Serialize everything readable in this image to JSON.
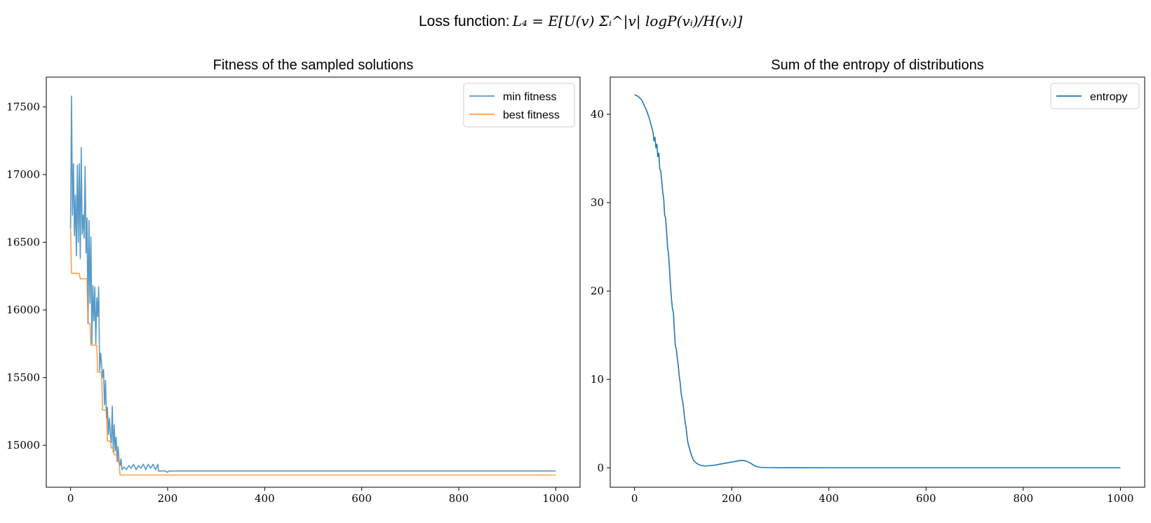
{
  "figure": {
    "suptitle_prefix": "Loss function: ",
    "suptitle_formula": "L₄ = E[U(v) Σᵢ^|v| logP(vᵢ)/H(vᵢ)]"
  },
  "chart_data": [
    {
      "type": "line",
      "title": "Fitness of the sampled solutions",
      "xlabel": "",
      "ylabel": "",
      "xlim": [
        -50,
        1050
      ],
      "ylim": [
        14690,
        17720
      ],
      "xticks": [
        0,
        200,
        400,
        600,
        800,
        1000
      ],
      "yticks": [
        15000,
        15500,
        16000,
        16500,
        17000,
        17500
      ],
      "legend_position": "top-right",
      "grid": false,
      "series": [
        {
          "name": "min fitness",
          "color": "#1f77b4",
          "alpha": 0.75,
          "points": [
            [
              0,
              16600
            ],
            [
              2,
              17580
            ],
            [
              4,
              16700
            ],
            [
              6,
              17080
            ],
            [
              8,
              16550
            ],
            [
              10,
              16850
            ],
            [
              12,
              16400
            ],
            [
              14,
              17070
            ],
            [
              16,
              16500
            ],
            [
              18,
              17080
            ],
            [
              20,
              16380
            ],
            [
              22,
              17200
            ],
            [
              24,
              16560
            ],
            [
              26,
              16700
            ],
            [
              28,
              16530
            ],
            [
              30,
              17060
            ],
            [
              32,
              16420
            ],
            [
              34,
              16680
            ],
            [
              36,
              15900
            ],
            [
              38,
              16660
            ],
            [
              40,
              16050
            ],
            [
              42,
              16540
            ],
            [
              44,
              15750
            ],
            [
              46,
              16180
            ],
            [
              48,
              15920
            ],
            [
              50,
              16170
            ],
            [
              52,
              15750
            ],
            [
              54,
              16090
            ],
            [
              56,
              15950
            ],
            [
              58,
              16170
            ],
            [
              60,
              15550
            ],
            [
              62,
              15680
            ],
            [
              64,
              15600
            ],
            [
              66,
              15500
            ],
            [
              68,
              15560
            ],
            [
              70,
              15300
            ],
            [
              72,
              15480
            ],
            [
              74,
              15200
            ],
            [
              76,
              15280
            ],
            [
              78,
              15080
            ],
            [
              80,
              15200
            ],
            [
              82,
              15080
            ],
            [
              84,
              15020
            ],
            [
              86,
              15290
            ],
            [
              88,
              14950
            ],
            [
              90,
              15150
            ],
            [
              92,
              14960
            ],
            [
              94,
              15060
            ],
            [
              96,
              14880
            ],
            [
              98,
              14990
            ],
            [
              100,
              14880
            ],
            [
              102,
              14850
            ],
            [
              104,
              14900
            ],
            [
              106,
              14820
            ],
            [
              110,
              14840
            ],
            [
              115,
              14820
            ],
            [
              120,
              14850
            ],
            [
              125,
              14830
            ],
            [
              130,
              14860
            ],
            [
              135,
              14820
            ],
            [
              140,
              14850
            ],
            [
              145,
              14830
            ],
            [
              150,
              14860
            ],
            [
              155,
              14820
            ],
            [
              160,
              14860
            ],
            [
              165,
              14830
            ],
            [
              170,
              14860
            ],
            [
              175,
              14820
            ],
            [
              180,
              14860
            ],
            [
              181,
              14810
            ],
            [
              195,
              14810
            ],
            [
              200,
              14800
            ],
            [
              202,
              14810
            ],
            [
              1000,
              14810
            ]
          ]
        },
        {
          "name": "best fitness",
          "color": "#ff7f0e",
          "alpha": 0.75,
          "step": true,
          "points": [
            [
              0,
              16600
            ],
            [
              2,
              16270
            ],
            [
              18,
              16270
            ],
            [
              20,
              16230
            ],
            [
              34,
              16230
            ],
            [
              36,
              15900
            ],
            [
              40,
              15900
            ],
            [
              42,
              15740
            ],
            [
              54,
              15740
            ],
            [
              56,
              15540
            ],
            [
              64,
              15540
            ],
            [
              66,
              15260
            ],
            [
              74,
              15260
            ],
            [
              76,
              15030
            ],
            [
              82,
              15030
            ],
            [
              84,
              14980
            ],
            [
              88,
              14980
            ],
            [
              90,
              14930
            ],
            [
              96,
              14930
            ],
            [
              98,
              14880
            ],
            [
              100,
              14880
            ],
            [
              102,
              14780
            ],
            [
              1000,
              14780
            ]
          ]
        }
      ]
    },
    {
      "type": "line",
      "title": "Sum of the entropy of distributions",
      "xlabel": "",
      "ylabel": "",
      "xlim": [
        -50,
        1050
      ],
      "ylim": [
        -2.2,
        44.2
      ],
      "xticks": [
        0,
        200,
        400,
        600,
        800,
        1000
      ],
      "yticks": [
        0,
        10,
        20,
        30,
        40
      ],
      "legend_position": "top-right",
      "grid": false,
      "series": [
        {
          "name": "entropy",
          "color": "#1f77b4",
          "alpha": 1,
          "points": [
            [
              0,
              42.2
            ],
            [
              5,
              42.1
            ],
            [
              10,
              41.9
            ],
            [
              15,
              41.6
            ],
            [
              20,
              41.0
            ],
            [
              25,
              40.4
            ],
            [
              30,
              39.6
            ],
            [
              35,
              38.6
            ],
            [
              38,
              38.0
            ],
            [
              40,
              37.0
            ],
            [
              42,
              37.4
            ],
            [
              44,
              36.2
            ],
            [
              46,
              36.6
            ],
            [
              48,
              35.2
            ],
            [
              50,
              35.6
            ],
            [
              52,
              33.8
            ],
            [
              54,
              33.6
            ],
            [
              56,
              32.5
            ],
            [
              58,
              31.2
            ],
            [
              60,
              30.5
            ],
            [
              62,
              28.6
            ],
            [
              64,
              28.2
            ],
            [
              66,
              26.8
            ],
            [
              68,
              25.0
            ],
            [
              70,
              24.2
            ],
            [
              72,
              22.5
            ],
            [
              74,
              20.6
            ],
            [
              76,
              19.2
            ],
            [
              78,
              18.0
            ],
            [
              80,
              17.6
            ],
            [
              82,
              15.5
            ],
            [
              84,
              13.8
            ],
            [
              86,
              13.4
            ],
            [
              88,
              12.4
            ],
            [
              90,
              11.6
            ],
            [
              92,
              10.4
            ],
            [
              94,
              9.6
            ],
            [
              96,
              8.4
            ],
            [
              98,
              7.8
            ],
            [
              100,
              7.2
            ],
            [
              102,
              6.2
            ],
            [
              104,
              5.2
            ],
            [
              106,
              4.6
            ],
            [
              108,
              3.6
            ],
            [
              110,
              2.8
            ],
            [
              114,
              2.0
            ],
            [
              118,
              1.3
            ],
            [
              122,
              0.8
            ],
            [
              128,
              0.5
            ],
            [
              135,
              0.3
            ],
            [
              145,
              0.2
            ],
            [
              155,
              0.25
            ],
            [
              165,
              0.3
            ],
            [
              175,
              0.4
            ],
            [
              185,
              0.5
            ],
            [
              195,
              0.6
            ],
            [
              205,
              0.7
            ],
            [
              215,
              0.8
            ],
            [
              222,
              0.85
            ],
            [
              230,
              0.75
            ],
            [
              238,
              0.55
            ],
            [
              245,
              0.3
            ],
            [
              252,
              0.12
            ],
            [
              260,
              0.05
            ],
            [
              280,
              0.02
            ],
            [
              300,
              0.01
            ],
            [
              400,
              0.0
            ],
            [
              1000,
              0.0
            ]
          ]
        }
      ]
    }
  ]
}
